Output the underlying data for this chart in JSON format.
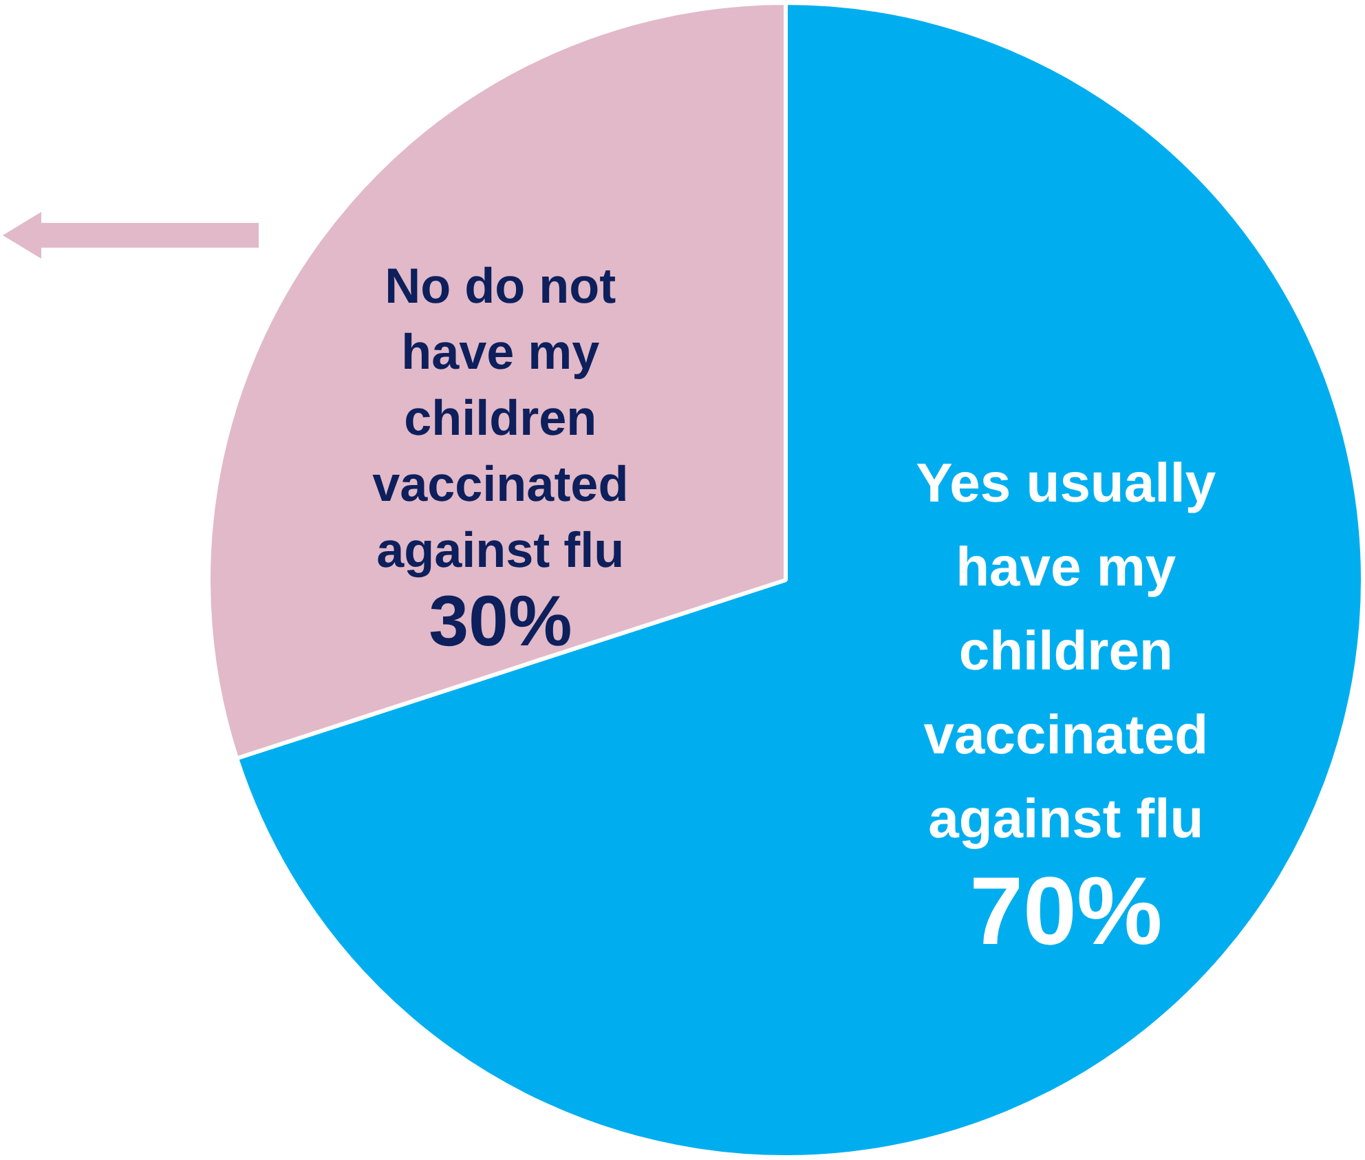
{
  "chart_data": {
    "type": "pie",
    "categories": [
      "Yes usually have my children vaccinated against flu",
      "No do not have my children vaccinated against flu"
    ],
    "values": [
      70,
      30
    ],
    "colors": [
      "#00aeef",
      "#e2b9c8"
    ],
    "value_labels": [
      "70%",
      "30%"
    ],
    "legend": false
  }
}
